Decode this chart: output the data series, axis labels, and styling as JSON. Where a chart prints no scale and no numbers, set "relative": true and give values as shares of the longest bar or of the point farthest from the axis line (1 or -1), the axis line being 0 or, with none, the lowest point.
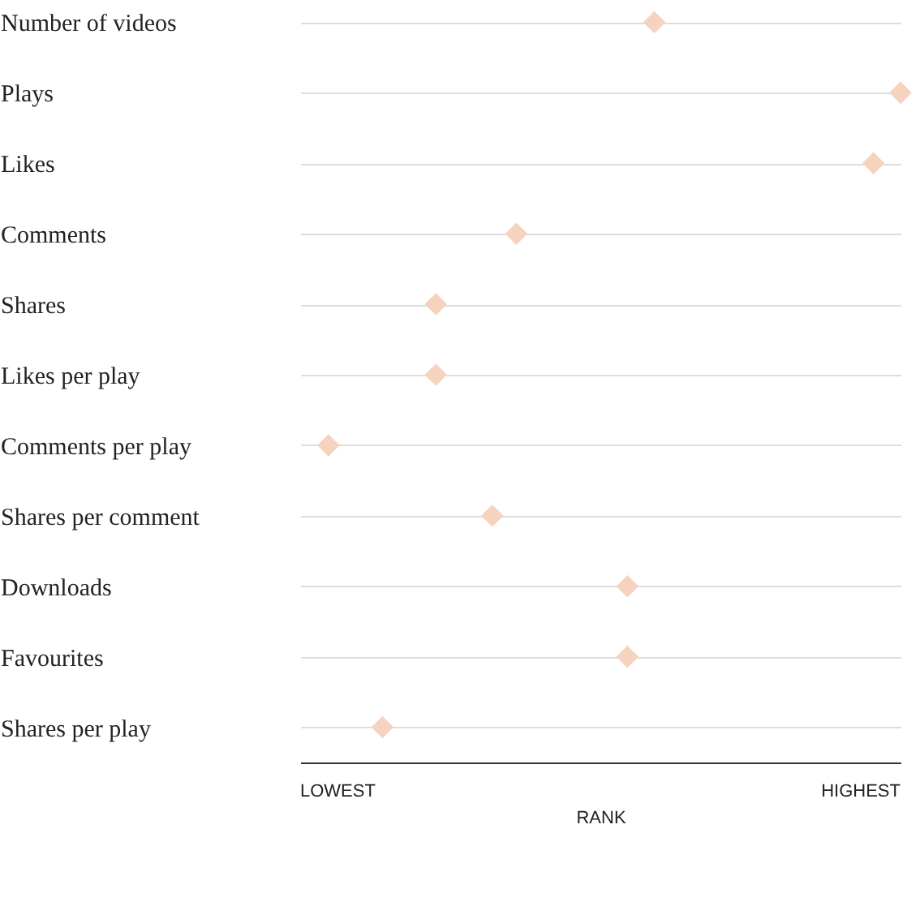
{
  "chart_data": {
    "type": "scatter",
    "orientation": "horizontal",
    "categories": [
      "Number of videos",
      "Plays",
      "Likes",
      "Comments",
      "Shares",
      "Likes per play",
      "Comments per play",
      "Shares per comment",
      "Downloads",
      "Favourites",
      "Shares per play"
    ],
    "values": [
      0.59,
      1,
      0.955,
      0.36,
      0.226,
      0.226,
      0.047,
      0.32,
      0.545,
      0.545,
      0.137
    ],
    "color": "#f6d3bf",
    "marker": "diamond",
    "xlabel": "RANK",
    "relative": true,
    "annotations": [
      "LOWEST",
      "HIGHEST"
    ],
    "grid": "y"
  }
}
